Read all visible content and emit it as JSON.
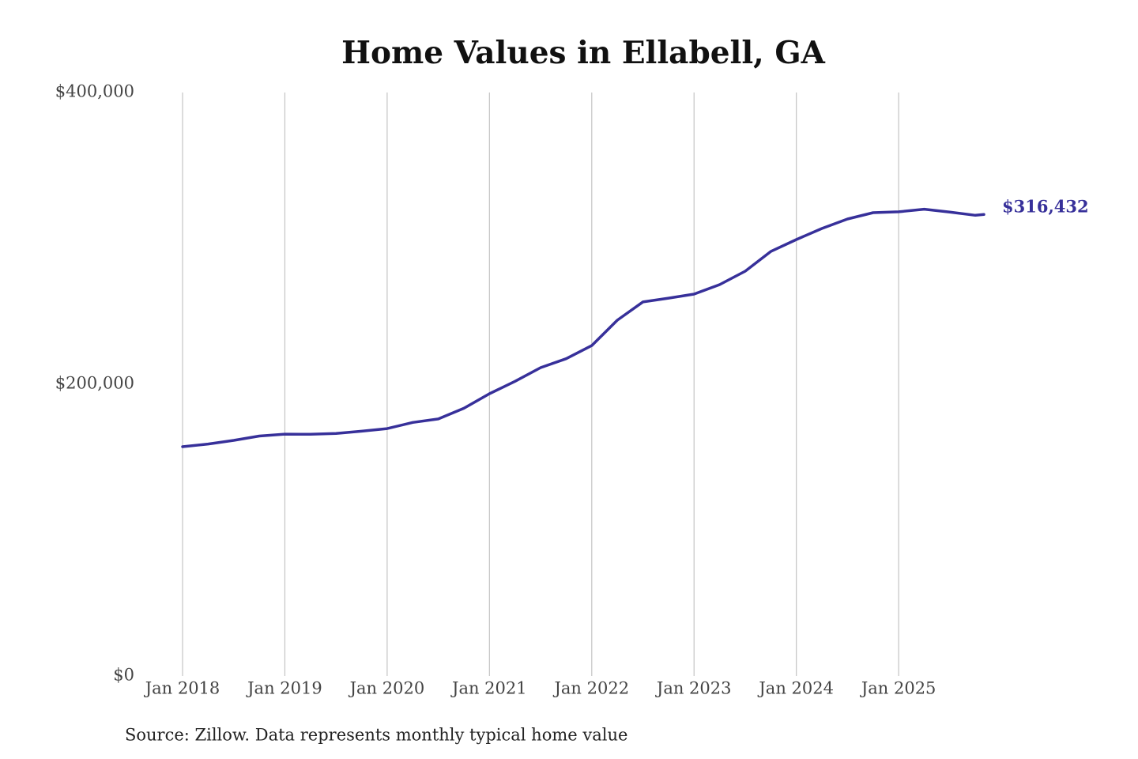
{
  "chart_data": {
    "type": "line",
    "title": "Home Values in Ellabell, GA",
    "source": "Source: Zillow. Data represents monthly typical home value",
    "x": [
      "2018-01",
      "2018-04",
      "2018-07",
      "2018-10",
      "2019-01",
      "2019-04",
      "2019-07",
      "2019-10",
      "2020-01",
      "2020-04",
      "2020-07",
      "2020-10",
      "2021-01",
      "2021-04",
      "2021-07",
      "2021-10",
      "2022-01",
      "2022-04",
      "2022-07",
      "2022-10",
      "2023-01",
      "2023-04",
      "2023-07",
      "2023-10",
      "2024-01",
      "2024-04",
      "2024-07",
      "2024-10",
      "2025-01",
      "2025-04",
      "2025-07",
      "2025-10",
      "2025-11"
    ],
    "values": [
      157200,
      159000,
      161500,
      164500,
      165800,
      165700,
      166300,
      167800,
      169600,
      173800,
      176200,
      183500,
      193500,
      202000,
      211400,
      217500,
      226500,
      243900,
      256400,
      259000,
      261800,
      268300,
      277500,
      291000,
      299200,
      306800,
      313300,
      317600,
      318200,
      320000,
      318000,
      315800,
      316432
    ],
    "value_labels": [
      null,
      null,
      null,
      null,
      null,
      null,
      null,
      null,
      null,
      null,
      null,
      null,
      null,
      null,
      null,
      null,
      null,
      null,
      null,
      null,
      null,
      null,
      null,
      null,
      null,
      null,
      null,
      null,
      null,
      null,
      null,
      null,
      "$316,432"
    ],
    "color": "#37309a",
    "xlim": [
      "2018-01",
      "2025-11"
    ],
    "xticks": [
      {
        "value": "2018-01",
        "label": "Jan 2018"
      },
      {
        "value": "2019-01",
        "label": "Jan 2019"
      },
      {
        "value": "2020-01",
        "label": "Jan 2020"
      },
      {
        "value": "2021-01",
        "label": "Jan 2021"
      },
      {
        "value": "2022-01",
        "label": "Jan 2022"
      },
      {
        "value": "2023-01",
        "label": "Jan 2023"
      },
      {
        "value": "2024-01",
        "label": "Jan 2024"
      },
      {
        "value": "2025-01",
        "label": "Jan 2025"
      }
    ],
    "ylim": [
      0,
      400000
    ],
    "yticks": [
      {
        "value": 0,
        "label": "$0"
      },
      {
        "value": 200000,
        "label": "$200,000"
      },
      {
        "value": 400000,
        "label": "$400,000"
      }
    ],
    "grid": "x"
  }
}
